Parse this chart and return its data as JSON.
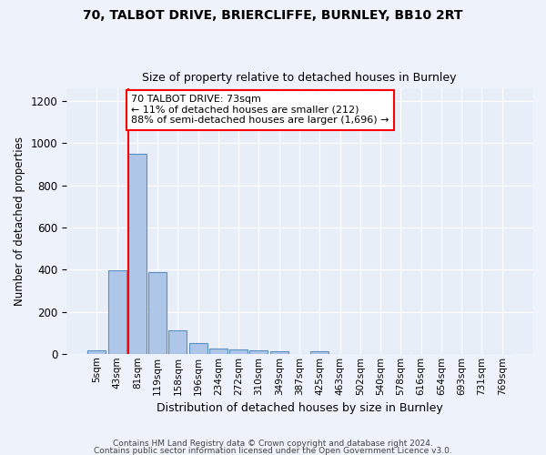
{
  "title1": "70, TALBOT DRIVE, BRIERCLIFFE, BURNLEY, BB10 2RT",
  "title2": "Size of property relative to detached houses in Burnley",
  "xlabel": "Distribution of detached houses by size in Burnley",
  "ylabel": "Number of detached properties",
  "categories": [
    "5sqm",
    "43sqm",
    "81sqm",
    "119sqm",
    "158sqm",
    "196sqm",
    "234sqm",
    "272sqm",
    "310sqm",
    "349sqm",
    "387sqm",
    "425sqm",
    "463sqm",
    "502sqm",
    "540sqm",
    "578sqm",
    "616sqm",
    "654sqm",
    "693sqm",
    "731sqm",
    "769sqm"
  ],
  "bar_heights": [
    15,
    395,
    950,
    390,
    110,
    53,
    27,
    22,
    15,
    13,
    0,
    13,
    0,
    0,
    0,
    0,
    0,
    0,
    0,
    0,
    0
  ],
  "bar_color": "#aec6e8",
  "bar_edge_color": "#5a8fc2",
  "ylim": [
    0,
    1260
  ],
  "yticks": [
    0,
    200,
    400,
    600,
    800,
    1000,
    1200
  ],
  "property_bin_index": 1.55,
  "annotation_text": "70 TALBOT DRIVE: 73sqm\n← 11% of detached houses are smaller (212)\n88% of semi-detached houses are larger (1,696) →",
  "footnote1": "Contains HM Land Registry data © Crown copyright and database right 2024.",
  "footnote2": "Contains public sector information licensed under the Open Government Licence v3.0.",
  "bg_color": "#eef2fa",
  "plot_bg_color": "#e8eef8"
}
